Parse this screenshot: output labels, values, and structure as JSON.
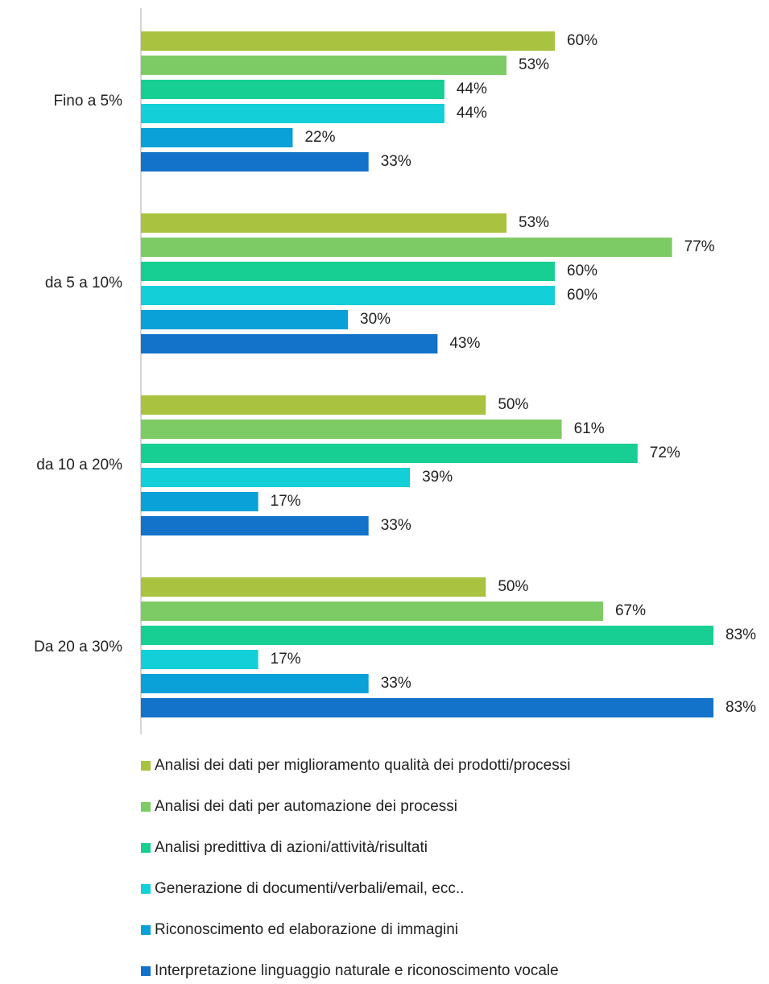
{
  "chart_data": {
    "type": "hbar",
    "categories": [
      "Fino a 5%",
      "da 5 a 10%",
      "da 10 a 20%",
      "Da 20 a 30%"
    ],
    "xlim": [
      0,
      90
    ],
    "series": [
      {
        "name": "Analisi dei dati per miglioramento qualità dei prodotti/processi",
        "color": "#a9c23f",
        "values": [
          60,
          53,
          50,
          50
        ],
        "value_labels": [
          "60%",
          "53%",
          "50%",
          "50%"
        ]
      },
      {
        "name": "Analisi dei dati per automazione dei processi",
        "color": "#7dcb64",
        "values": [
          53,
          77,
          61,
          67
        ],
        "value_labels": [
          "53%",
          "77%",
          "61%",
          "67%"
        ]
      },
      {
        "name": "Analisi predittiva di azioni/attività/risultati",
        "color": "#17cf93",
        "values": [
          44,
          60,
          72,
          83
        ],
        "value_labels": [
          "44%",
          "60%",
          "72%",
          "83%"
        ]
      },
      {
        "name": "Generazione di documenti/verbali/email, ecc..",
        "color": "#12cfd8",
        "values": [
          44,
          60,
          39,
          17
        ],
        "value_labels": [
          "44%",
          "60%",
          "39%",
          "17%"
        ]
      },
      {
        "name": "Riconoscimento ed elaborazione di immagini",
        "color": "#0aa0d8",
        "values": [
          22,
          30,
          17,
          33
        ],
        "value_labels": [
          "22%",
          "30%",
          "17%",
          "33%"
        ]
      },
      {
        "name": "Interpretazione linguaggio naturale e riconoscimento vocale",
        "color": "#1372c9",
        "values": [
          33,
          43,
          33,
          83
        ],
        "value_labels": [
          "33%",
          "43%",
          "33%",
          "83%"
        ]
      }
    ]
  }
}
